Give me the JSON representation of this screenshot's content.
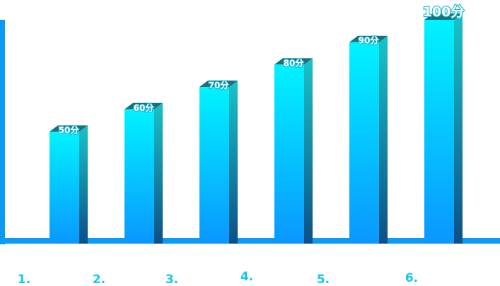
{
  "chart_data": {
    "type": "bar",
    "categories": [
      "1.",
      "2.",
      "3.",
      "4.",
      "5.",
      "6."
    ],
    "values": [
      50,
      60,
      70,
      80,
      90,
      100
    ],
    "data_labels": [
      "50分",
      "60分",
      "70分",
      "80分",
      "90分",
      "100分"
    ],
    "ylim": [
      0,
      100
    ],
    "grid": false,
    "colors": {
      "bar_top": "#00f3ff",
      "bar_bottom": "#0a97ff",
      "side_top": "#19c3c8",
      "side_bottom": "#0d4f86",
      "cap": "#1b6f7a",
      "axis": "#0a9cf5",
      "category_text": "#11c9f0"
    }
  }
}
